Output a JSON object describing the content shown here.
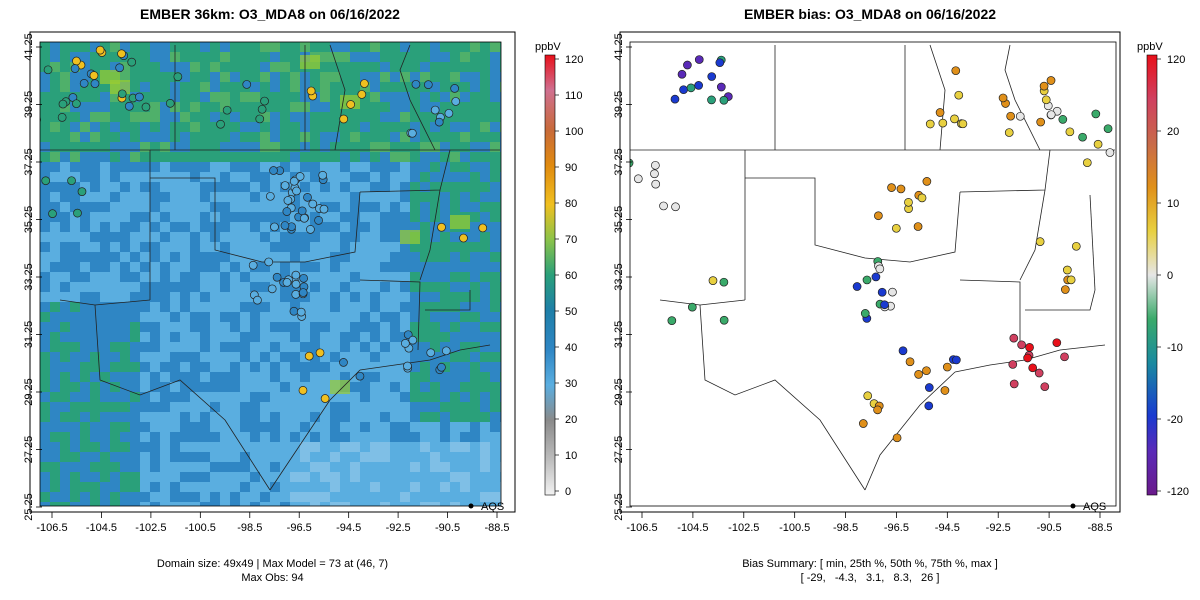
{
  "left_panel": {
    "title": "EMBER 36km: O3_MDA8 on 06/16/2022",
    "caption_line1": "Domain size: 49x49 | Max Model = 73 at (46, 7)",
    "caption_line2": "Max Obs: 94",
    "legend_label": "AQS",
    "colorbar_unit": "ppbV",
    "colorbar_ticks": [
      "0",
      "10",
      "20",
      "30",
      "40",
      "50",
      "60",
      "70",
      "80",
      "90",
      "100",
      "110",
      "120"
    ]
  },
  "right_panel": {
    "title": "EMBER bias: O3_MDA8 on 06/16/2022",
    "caption_line1": "Bias Summary: [ min, 25th %, 50th %, 75th %, max ]",
    "caption_line2": "[ -29,   -4.3,   3.1,   8.3,   26 ]",
    "legend_label": "AQS",
    "colorbar_unit": "ppbV",
    "colorbar_ticks": [
      "-120",
      "-20",
      "-10",
      "0",
      "10",
      "20",
      "120"
    ]
  },
  "axes": {
    "x_ticks": [
      "-106.5",
      "-104.5",
      "-102.5",
      "-100.5",
      "-98.5",
      "-96.5",
      "-94.5",
      "-92.5",
      "-90.5",
      "-88.5"
    ],
    "y_ticks": [
      "25.25",
      "27.25",
      "29.25",
      "31.25",
      "33.25",
      "35.25",
      "37.25",
      "39.25",
      "41.25"
    ]
  },
  "colors": {
    "model_low": "#5aaee0",
    "model_mid": "#2f86c4",
    "model_high": "#2aa07a",
    "hot": "#f0c020"
  }
}
